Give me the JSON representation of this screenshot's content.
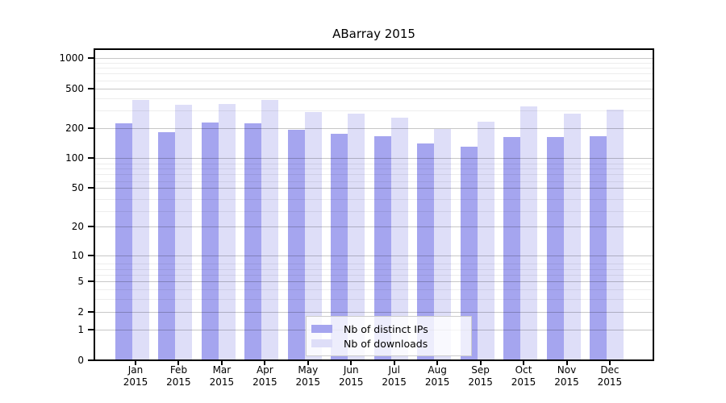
{
  "chart_data": {
    "type": "bar",
    "title": "ABarray 2015",
    "categories": [
      "Jan 2015",
      "Feb 2015",
      "Mar 2015",
      "Apr 2015",
      "May 2015",
      "Jun 2015",
      "Jul 2015",
      "Aug 2015",
      "Sep 2015",
      "Oct 2015",
      "Nov 2015",
      "Dec 2015"
    ],
    "series": [
      {
        "name": "Nb of distinct IPs",
        "key": "distinct-ips",
        "color": "#a5a5ef",
        "values": [
          222,
          181,
          228,
          222,
          193,
          175,
          165,
          140,
          130,
          162,
          162,
          166
        ]
      },
      {
        "name": "Nb of downloads",
        "key": "downloads",
        "color": "#dedef8",
        "values": [
          383,
          341,
          347,
          380,
          289,
          278,
          254,
          196,
          232,
          329,
          280,
          305
        ]
      }
    ],
    "xlabel": "",
    "ylabel": "",
    "yscale": "log10(value+1)",
    "yticks": [
      0,
      1,
      2,
      5,
      10,
      20,
      50,
      100,
      200,
      500,
      1000
    ],
    "ytick_labels": [
      "0",
      "1",
      "2",
      "5",
      "10",
      "20",
      "50",
      "100",
      "200",
      "500",
      "1000"
    ],
    "ylim": [
      0,
      1200
    ],
    "grid": "horizontal major + log minor, drawn over bars",
    "legend_position": "bottom-center inside plot",
    "colors": {
      "spine": "#000000",
      "major_grid": "#c6c6c6",
      "minor_grid": "#ededed",
      "background": "#ffffff",
      "legend_border": "#cccccc"
    }
  }
}
